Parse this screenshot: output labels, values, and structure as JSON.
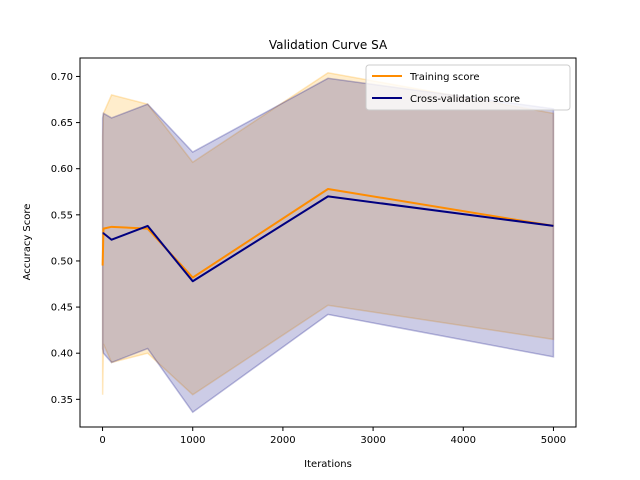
{
  "chart_data": {
    "type": "line",
    "title": "Validation Curve SA",
    "xlabel": "Iterations",
    "ylabel": "Accuracy Score",
    "xlim": [
      -250,
      5250
    ],
    "ylim": [
      0.32,
      0.72
    ],
    "xticks": [
      0,
      1000,
      2000,
      3000,
      4000,
      5000
    ],
    "xtick_labels": [
      "0",
      "1000",
      "2000",
      "3000",
      "4000",
      "5000"
    ],
    "yticks": [
      0.35,
      0.4,
      0.45,
      0.5,
      0.55,
      0.6,
      0.65,
      0.7
    ],
    "ytick_labels": [
      "0.35",
      "0.40",
      "0.45",
      "0.50",
      "0.55",
      "0.60",
      "0.65",
      "0.70"
    ],
    "grid": false,
    "legend_position": "top-right",
    "x": [
      1,
      10,
      100,
      500,
      1000,
      2500,
      5000
    ],
    "series": [
      {
        "name": "Training score",
        "color": "#ff8c00",
        "band_color": "#ffa500",
        "values": [
          0.495,
          0.535,
          0.537,
          0.535,
          0.482,
          0.578,
          0.538
        ],
        "lower": [
          0.355,
          0.41,
          0.39,
          0.4,
          0.355,
          0.452,
          0.415
        ],
        "upper": [
          0.635,
          0.66,
          0.68,
          0.67,
          0.607,
          0.704,
          0.66
        ]
      },
      {
        "name": "Cross-validation score",
        "color": "#000080",
        "band_color": "#000080",
        "values": [
          0.53,
          0.53,
          0.523,
          0.538,
          0.478,
          0.57,
          0.538
        ],
        "lower": [
          0.405,
          0.4,
          0.39,
          0.405,
          0.336,
          0.442,
          0.396
        ],
        "upper": [
          0.655,
          0.66,
          0.655,
          0.67,
          0.618,
          0.698,
          0.665
        ]
      }
    ]
  }
}
